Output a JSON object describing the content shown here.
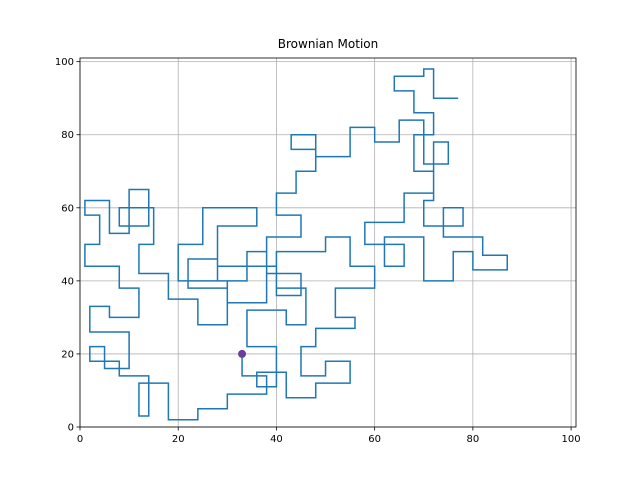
{
  "chart_data": {
    "type": "line",
    "title": "Brownian Motion",
    "color": "#1f77b4",
    "x": [
      33,
      33,
      38,
      38,
      30,
      30,
      24,
      24,
      18,
      18,
      12,
      12,
      14,
      14,
      8,
      8,
      2,
      2,
      5,
      5,
      10,
      10,
      2,
      2,
      6,
      6,
      12,
      12,
      8,
      8,
      1,
      1,
      4,
      4,
      1,
      1,
      6,
      6,
      10,
      10,
      14,
      14,
      8,
      8,
      15,
      15,
      12,
      12,
      18,
      18,
      24,
      24,
      30,
      30,
      22,
      22,
      28,
      28,
      34,
      34,
      38,
      38,
      45,
      45,
      40,
      40,
      50,
      50,
      55,
      55,
      60,
      60,
      52,
      52,
      56,
      56,
      48,
      48,
      45,
      45,
      50,
      50,
      55,
      55,
      48,
      48,
      42,
      42,
      36,
      36,
      40,
      40,
      34,
      34,
      42,
      42,
      46,
      46,
      40,
      40,
      28,
      28,
      36,
      36,
      25,
      25,
      20,
      20,
      30,
      30,
      38,
      38,
      45,
      45,
      40,
      40,
      44,
      44,
      48,
      48,
      43,
      43,
      48,
      48,
      55,
      55,
      60,
      60,
      65,
      65,
      70,
      70,
      75,
      75,
      72,
      72,
      66,
      66,
      58,
      58,
      66,
      66,
      62,
      62,
      70,
      70,
      76,
      76,
      80,
      80,
      87,
      87,
      82,
      82,
      74,
      74,
      78,
      78,
      70,
      70,
      72,
      72,
      68,
      68,
      72,
      72,
      68,
      68,
      64,
      64,
      70,
      70,
      72,
      72,
      77
    ],
    "values": [
      20,
      14,
      14,
      9,
      9,
      5,
      5,
      2,
      2,
      12,
      12,
      3,
      3,
      14,
      14,
      18,
      18,
      22,
      22,
      16,
      16,
      26,
      26,
      33,
      33,
      30,
      30,
      38,
      38,
      44,
      44,
      50,
      50,
      58,
      58,
      62,
      62,
      53,
      53,
      65,
      65,
      55,
      55,
      60,
      60,
      50,
      50,
      42,
      42,
      35,
      35,
      28,
      28,
      38,
      38,
      46,
      46,
      40,
      40,
      48,
      48,
      42,
      42,
      36,
      36,
      48,
      48,
      52,
      52,
      44,
      44,
      38,
      38,
      30,
      30,
      27,
      27,
      22,
      22,
      14,
      14,
      18,
      18,
      12,
      12,
      8,
      8,
      15,
      15,
      11,
      11,
      22,
      22,
      32,
      32,
      28,
      28,
      38,
      38,
      44,
      44,
      55,
      55,
      60,
      60,
      50,
      50,
      40,
      40,
      34,
      34,
      52,
      52,
      58,
      58,
      64,
      64,
      70,
      70,
      76,
      76,
      80,
      80,
      74,
      74,
      82,
      82,
      78,
      78,
      84,
      84,
      72,
      72,
      78,
      78,
      64,
      64,
      56,
      56,
      50,
      50,
      44,
      44,
      52,
      52,
      40,
      40,
      48,
      48,
      43,
      43,
      47,
      47,
      52,
      52,
      60,
      60,
      55,
      55,
      62,
      62,
      70,
      70,
      80,
      80,
      86,
      86,
      92,
      92,
      96,
      96,
      98,
      98,
      90,
      90
    ],
    "start_point": {
      "x": 33,
      "y": 20,
      "color": "#6a3d9a"
    },
    "xlim": [
      0,
      101
    ],
    "ylim": [
      0,
      101
    ],
    "xticks": [
      0,
      20,
      40,
      60,
      80,
      100
    ],
    "yticks": [
      0,
      20,
      40,
      60,
      80,
      100
    ],
    "grid": true
  }
}
